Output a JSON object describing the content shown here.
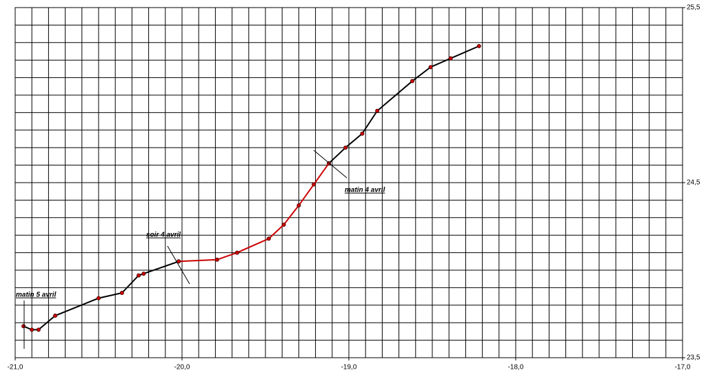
{
  "chart_data": {
    "type": "line",
    "series": [
      {
        "color": "#000000",
        "x": [
          -18.22,
          -18.39,
          -18.51,
          -18.62,
          -18.83,
          -18.92,
          -19.02,
          -19.12
        ],
        "values": [
          25.28,
          25.21,
          25.16,
          25.08,
          24.91,
          24.78,
          24.7,
          24.61
        ]
      },
      {
        "color": "#cc0000",
        "x": [
          -19.12,
          -19.21,
          -19.3,
          -19.39,
          -19.48,
          -19.67,
          -19.79,
          -20.02
        ],
        "values": [
          24.61,
          24.49,
          24.37,
          24.26,
          24.18,
          24.1,
          24.06,
          24.05
        ]
      },
      {
        "color": "#000000",
        "x": [
          -20.02,
          -20.23,
          -20.26,
          -20.36,
          -20.5,
          -20.76,
          -20.86,
          -20.9,
          -20.95
        ],
        "values": [
          24.05,
          23.98,
          23.97,
          23.87,
          23.84,
          23.74,
          23.66,
          23.66,
          23.68
        ]
      }
    ],
    "marker_color": "#cc0000",
    "annotations": [
      "matin 4 avril",
      "soir 4 avril",
      "matin 5 avril"
    ],
    "xlim": [
      -21,
      -17
    ],
    "ylim": [
      23.5,
      25.5
    ],
    "xticks": [
      {
        "value": -21,
        "label": "-21,0"
      },
      {
        "value": -20,
        "label": "-20,0"
      },
      {
        "value": -19,
        "label": "-19,0"
      },
      {
        "value": -18,
        "label": "-18,0"
      },
      {
        "value": -17,
        "label": "-17,0"
      }
    ],
    "yticks": [
      {
        "value": 23.5,
        "label": "23,5"
      },
      {
        "value": 24.5,
        "label": "24,5"
      },
      {
        "value": 25.5,
        "label": "25,5"
      }
    ],
    "grid": true,
    "x_grid": [
      -21.0,
      -20.9,
      -20.8,
      -20.7,
      -20.6,
      -20.5,
      -20.4,
      -20.3,
      -20.2,
      -20.1,
      -20.0,
      -19.9,
      -19.8,
      -19.7,
      -19.6,
      -19.5,
      -19.4,
      -19.3,
      -19.2,
      -19.1,
      -19.0,
      -18.9,
      -18.8,
      -18.7,
      -18.6,
      -18.5,
      -18.4,
      -18.3,
      -18.2,
      -18.1,
      -18.0,
      -17.9,
      -17.8,
      -17.7,
      -17.6,
      -17.5,
      -17.4,
      -17.3,
      -17.2,
      -17.1,
      -17.0
    ],
    "y_grid": [
      23.5,
      23.6,
      23.7,
      23.8,
      23.9,
      24.0,
      24.1,
      24.2,
      24.3,
      24.4,
      24.5,
      24.6,
      24.7,
      24.8,
      24.9,
      25.0,
      25.1,
      25.2,
      25.3,
      25.4,
      25.5
    ]
  }
}
